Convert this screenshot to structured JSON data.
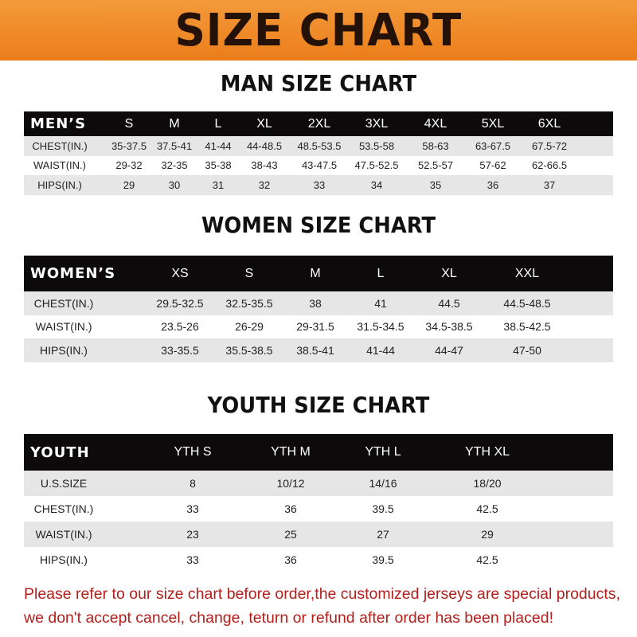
{
  "title": "SIZE CHART",
  "men": {
    "heading": "MAN SIZE CHART",
    "header": [
      "MEN’S",
      "S",
      "M",
      "L",
      "XL",
      "2XL",
      "3XL",
      "4XL",
      "5XL",
      "6XL"
    ],
    "rows": [
      [
        "CHEST(IN.)",
        "35-37.5",
        "37.5-41",
        "41-44",
        "44-48.5",
        "48.5-53.5",
        "53.5-58",
        "58-63",
        "63-67.5",
        "67.5-72"
      ],
      [
        "WAIST(IN.)",
        "29-32",
        "32-35",
        "35-38",
        "38-43",
        "43-47.5",
        "47.5-52.5",
        "52.5-57",
        "57-62",
        "62-66.5"
      ],
      [
        "HIPS(IN.)",
        "29",
        "30",
        "31",
        "32",
        "33",
        "34",
        "35",
        "36",
        "37"
      ]
    ]
  },
  "women": {
    "heading": "WOMEN SIZE CHART",
    "header": [
      "WOMEN’S",
      "XS",
      "S",
      "M",
      "L",
      "XL",
      "XXL"
    ],
    "rows": [
      [
        "CHEST(IN.)",
        "29.5-32.5",
        "32.5-35.5",
        "38",
        "41",
        "44.5",
        "44.5-48.5"
      ],
      [
        "WAIST(IN.)",
        "23.5-26",
        "26-29",
        "29-31.5",
        "31.5-34.5",
        "34.5-38.5",
        "38.5-42.5"
      ],
      [
        "HIPS(IN.)",
        "33-35.5",
        "35.5-38.5",
        "38.5-41",
        "41-44",
        "44-47",
        "47-50"
      ]
    ]
  },
  "youth": {
    "heading": "YOUTH SIZE CHART",
    "header": [
      "YOUTH",
      "YTH S",
      "YTH M",
      "YTH L",
      "YTH XL"
    ],
    "rows": [
      [
        "U.S.SIZE",
        "8",
        "10/12",
        "14/16",
        "18/20"
      ],
      [
        "CHEST(IN.)",
        "33",
        "36",
        "39.5",
        "42.5"
      ],
      [
        "WAIST(IN.)",
        "23",
        "25",
        "27",
        "29"
      ],
      [
        "HIPS(IN.)",
        "33",
        "36",
        "39.5",
        "42.5"
      ]
    ]
  },
  "note": [
    "Please refer to our size chart before order,the customized jerseys are special products,",
    "we don't accept cancel, change, teturn or refund after order has been placed!"
  ]
}
